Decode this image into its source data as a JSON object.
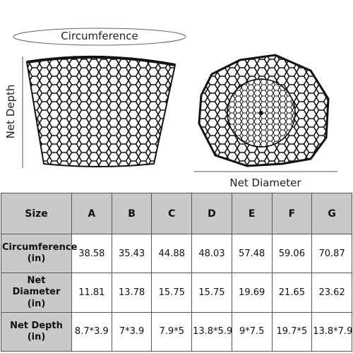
{
  "labels": {
    "circumference": "Circumference",
    "net_depth": "Net Depth",
    "net_diameter": "Net Diameter"
  },
  "table": {
    "header": [
      "Size",
      "A",
      "B",
      "C",
      "D",
      "E",
      "F",
      "G"
    ],
    "rows": [
      [
        "Circumference (in)",
        "38.58",
        "35.43",
        "44.88",
        "48.03",
        "57.48",
        "59.06",
        "70.87"
      ],
      [
        "Net Diameter (in)",
        "11.81",
        "13.78",
        "15.75",
        "15.75",
        "19.69",
        "21.65",
        "23.62"
      ],
      [
        "Net Depth (in)",
        "8.7*3.9",
        "7*3.9",
        "7.9*5",
        "13.8*5.9",
        "9*7.5",
        "19.7*5",
        "13.8*7.9"
      ]
    ]
  }
}
